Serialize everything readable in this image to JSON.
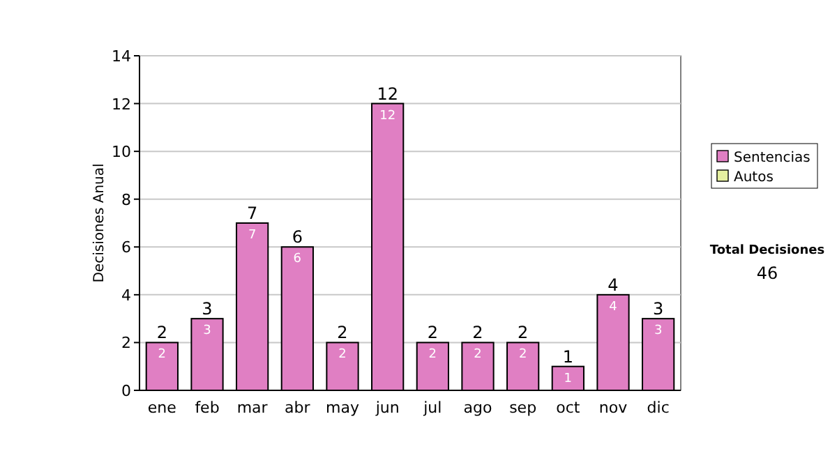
{
  "chart_data": {
    "type": "bar",
    "ylabel": "Decisiones Anual",
    "categories": [
      "ene",
      "feb",
      "mar",
      "abr",
      "may",
      "jun",
      "jul",
      "ago",
      "sep",
      "oct",
      "nov",
      "dic"
    ],
    "series": [
      {
        "name": "Sentencias",
        "color": "#e07fc3",
        "values": [
          2,
          3,
          7,
          6,
          2,
          12,
          2,
          2,
          2,
          1,
          4,
          3
        ]
      },
      {
        "name": "Autos",
        "color": "#e6f0a0",
        "values": [
          null,
          null,
          null,
          null,
          null,
          null,
          null,
          null,
          null,
          null,
          null,
          null
        ]
      }
    ],
    "stacked": true,
    "data_labels": true,
    "totals": [
      "2",
      "3",
      "7",
      "6",
      "2",
      "12",
      "2",
      "2",
      "2",
      "1",
      "4",
      "3"
    ],
    "ylim": [
      0,
      14
    ],
    "yticks": [
      0,
      2,
      4,
      6,
      8,
      10,
      12,
      14
    ],
    "grid": "y",
    "legend": "right",
    "annotations": [
      "Total Decisiones",
      "46"
    ]
  }
}
